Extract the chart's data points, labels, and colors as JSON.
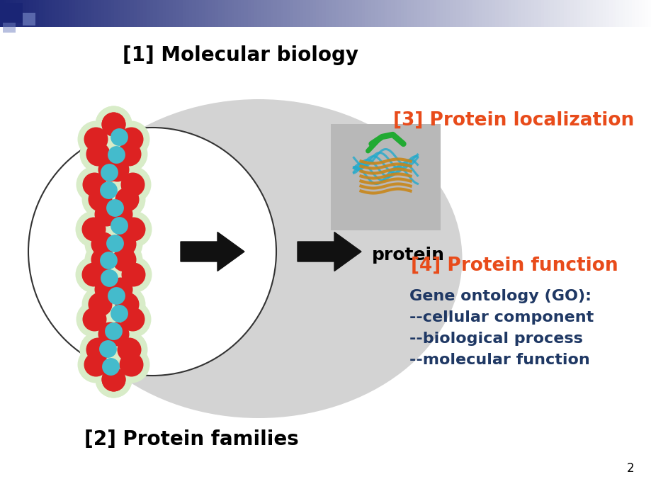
{
  "bg_color": "#ffffff",
  "title1": "[1] Molecular biology",
  "title1_color": "#000000",
  "title1_fontsize": 20,
  "label2": "[2] Protein families",
  "label2_color": "#000000",
  "label2_fontsize": 20,
  "label3": "[3] Protein localization",
  "label3_color": "#e84b1a",
  "label3_fontsize": 19,
  "label4": "[4] Protein function",
  "label4_color": "#e84b1a",
  "label4_fontsize": 19,
  "go_line1": "Gene ontology (GO):",
  "go_line2": "--cellular component",
  "go_line3": "--biological process",
  "go_line4": "--molecular function",
  "go_color": "#1f3864",
  "go_fontsize": 16,
  "protein_label": "protein",
  "protein_label_color": "#000000",
  "protein_label_fontsize": 18,
  "ellipse_color": "#d3d3d3",
  "circle_color": "#ffffff",
  "circle_edge": "#333333",
  "arrow_color": "#111111",
  "page_num": "2",
  "page_num_color": "#000000",
  "page_num_fontsize": 12,
  "header_dark": "#1a2575",
  "header_light": "#ffffff",
  "sq1_color": "#1a2575",
  "sq2_color": "#7080c0"
}
